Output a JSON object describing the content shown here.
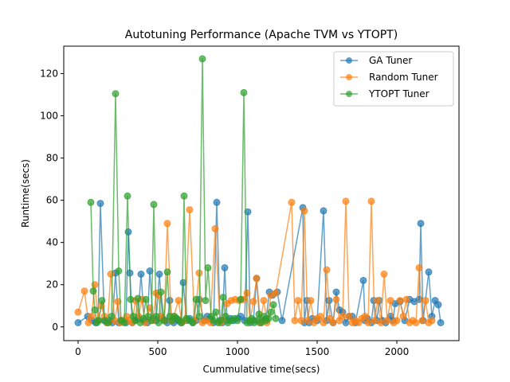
{
  "chart_data": {
    "type": "line",
    "title": "Autotuning Performance (Apache TVM vs YTOPT)",
    "xlabel": "Cummulative time(secs)",
    "ylabel": "Runtime(secs)",
    "xlim": [
      -90,
      2390
    ],
    "ylim": [
      -6.5,
      133
    ],
    "xticks": [
      0,
      500,
      1000,
      1500,
      2000
    ],
    "yticks": [
      0,
      20,
      40,
      60,
      80,
      100,
      120
    ],
    "grid": false,
    "legend_position": "top-right",
    "series": [
      {
        "name": "GA Tuner",
        "color": "#1f77b4",
        "x": [
          0,
          60,
          90,
          110,
          125,
          140,
          165,
          180,
          200,
          215,
          235,
          255,
          275,
          300,
          315,
          325,
          340,
          355,
          375,
          395,
          415,
          435,
          450,
          470,
          490,
          510,
          530,
          545,
          560,
          575,
          590,
          600,
          615,
          630,
          645,
          660,
          680,
          700,
          720,
          740,
          760,
          790,
          810,
          830,
          850,
          870,
          890,
          905,
          920,
          935,
          955,
          975,
          1000,
          1020,
          1045,
          1065,
          1080,
          1100,
          1120,
          1140,
          1160,
          1180,
          1200,
          1220,
          1250,
          1280,
          1410,
          1420,
          1435,
          1450,
          1470,
          1500,
          1540,
          1560,
          1575,
          1600,
          1620,
          1640,
          1660,
          1680,
          1700,
          1720,
          1740,
          1790,
          1800,
          1815,
          1840,
          1855,
          1875,
          1890,
          1910,
          1930,
          1960,
          1975,
          1990,
          2020,
          2050,
          2080,
          2110,
          2140,
          2150,
          2165,
          2200,
          2220,
          2240,
          2260,
          2275
        ],
        "y": [
          2,
          5,
          3,
          2,
          3,
          58.5,
          3,
          2,
          3,
          2,
          25.5,
          2,
          3,
          2,
          45,
          25.5,
          2,
          3,
          4,
          25,
          3,
          2,
          26.5,
          4,
          3,
          25,
          4,
          3,
          2,
          12.5,
          3,
          2,
          4,
          3,
          2,
          21,
          3,
          4,
          2,
          3,
          13,
          3,
          5,
          4,
          2,
          59,
          3,
          2,
          28,
          3,
          4,
          3,
          4,
          5,
          3,
          54.5,
          2,
          3,
          23,
          2,
          3,
          4,
          16.5,
          15,
          16.5,
          3,
          56.5,
          2,
          12.5,
          2,
          4,
          3,
          55,
          3,
          12.5,
          2,
          16.5,
          8,
          7,
          2,
          5,
          5,
          2,
          22,
          3,
          4,
          2,
          12.5,
          3,
          12.5,
          3,
          2,
          5,
          3,
          11,
          12,
          3,
          13,
          12,
          13,
          49,
          3,
          26,
          5,
          12.5,
          10.5,
          2
        ]
      },
      {
        "name": "Random Tuner",
        "color": "#ff7f0e",
        "x": [
          0,
          40,
          65,
          85,
          105,
          125,
          145,
          165,
          185,
          205,
          230,
          250,
          265,
          285,
          305,
          320,
          340,
          360,
          380,
          400,
          420,
          450,
          470,
          490,
          505,
          520,
          540,
          560,
          585,
          600,
          630,
          650,
          670,
          700,
          730,
          760,
          780,
          800,
          830,
          860,
          890,
          910,
          935,
          960,
          985,
          1010,
          1035,
          1060,
          1080,
          1100,
          1120,
          1145,
          1165,
          1185,
          1210,
          1240,
          1340,
          1360,
          1380,
          1400,
          1420,
          1440,
          1460,
          1480,
          1500,
          1520,
          1540,
          1560,
          1580,
          1600,
          1620,
          1640,
          1660,
          1680,
          1700,
          1720,
          1740,
          1760,
          1780,
          1800,
          1820,
          1840,
          1860,
          1880,
          1900,
          1920,
          1940,
          1960,
          1980,
          2000,
          2020,
          2040,
          2060,
          2080,
          2100,
          2120,
          2140,
          2160,
          2180,
          2200,
          2220
        ],
        "y": [
          7,
          17,
          2,
          5,
          20,
          3,
          10,
          5,
          2,
          25,
          3,
          12,
          2,
          3,
          5,
          3,
          2,
          12.5,
          5,
          13,
          2,
          9,
          3,
          16,
          15,
          5,
          3,
          49,
          3,
          5,
          12.5,
          2,
          3,
          55.5,
          3,
          25.5,
          2,
          3,
          2,
          46.5,
          2,
          3,
          11,
          12.5,
          13,
          12.5,
          13,
          16,
          3,
          12,
          23,
          2,
          12.5,
          2,
          15,
          16,
          59,
          3,
          12.5,
          3,
          55,
          3,
          12.5,
          2,
          4,
          5,
          2,
          27,
          4,
          2,
          13,
          3,
          5,
          59.5,
          5,
          2,
          3,
          2,
          4,
          5,
          2,
          59.5,
          3,
          12.5,
          2,
          25,
          3,
          12.5,
          2,
          3,
          12.5,
          5,
          13,
          2,
          3,
          2,
          28,
          3,
          12.5,
          2,
          3
        ]
      },
      {
        "name": "YTOPT Tuner",
        "color": "#2ca02c",
        "x": [
          80,
          95,
          105,
          118,
          130,
          150,
          170,
          190,
          210,
          235,
          255,
          270,
          290,
          310,
          330,
          345,
          360,
          375,
          390,
          410,
          425,
          440,
          460,
          475,
          490,
          505,
          520,
          540,
          560,
          575,
          590,
          605,
          620,
          635,
          650,
          665,
          680,
          700,
          720,
          740,
          760,
          780,
          800,
          815,
          835,
          850,
          865,
          880,
          895,
          910,
          925,
          940,
          960,
          980,
          1000,
          1020,
          1040,
          1060,
          1075,
          1090,
          1105,
          1120,
          1135,
          1150,
          1165,
          1180,
          1195,
          1210,
          1225,
          1240
        ],
        "y": [
          59,
          17,
          8,
          2,
          3,
          12.5,
          3,
          2,
          5,
          110.5,
          26.5,
          3,
          2,
          62,
          13,
          5,
          3,
          13.5,
          2,
          4,
          13,
          5,
          3,
          58,
          5,
          2,
          16.5,
          3,
          26,
          5,
          3,
          5,
          4,
          3,
          2,
          62,
          4,
          3,
          2,
          13,
          5,
          127,
          12.5,
          28,
          5,
          3,
          7,
          2,
          3,
          14,
          5,
          2,
          3,
          4,
          3,
          13,
          111,
          2,
          3,
          4,
          2,
          3,
          6,
          2,
          5,
          3,
          4,
          7,
          10.5,
          4
        ]
      }
    ]
  }
}
